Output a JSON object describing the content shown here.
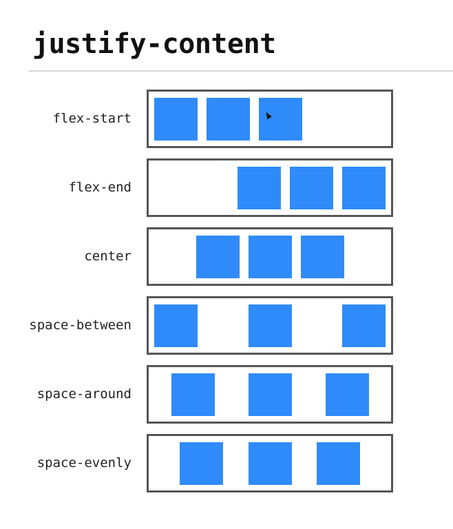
{
  "title": "justify-content",
  "rows": [
    {
      "label": "flex-start"
    },
    {
      "label": "flex-end"
    },
    {
      "label": "center"
    },
    {
      "label": "space-between"
    },
    {
      "label": "space-around"
    },
    {
      "label": "space-evenly"
    }
  ],
  "colors": {
    "item": "#2f8bfa",
    "border": "#555555",
    "divider": "#d6d6d6"
  },
  "icons": {
    "cursor": "mouse-pointer-icon"
  }
}
